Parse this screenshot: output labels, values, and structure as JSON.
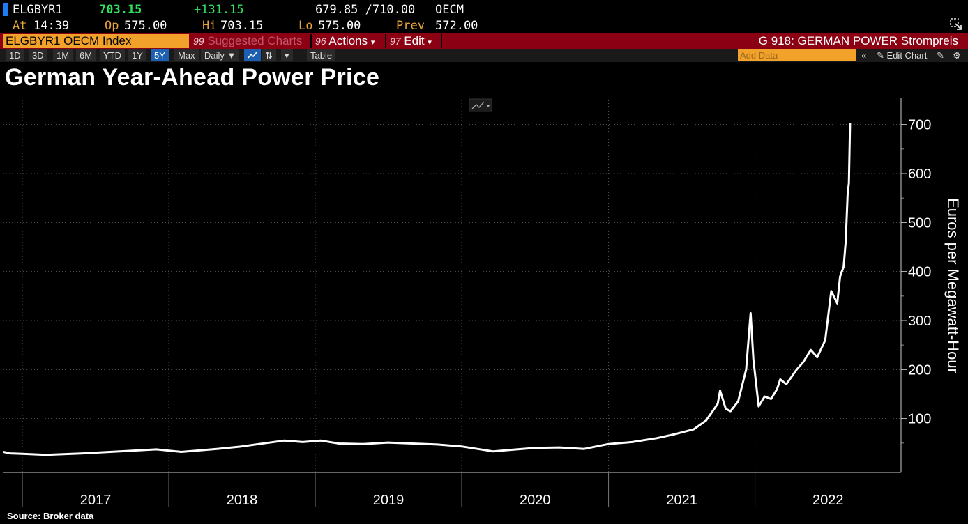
{
  "quote": {
    "ticker": "ELGBYR1",
    "last": "703.15",
    "change": "+131.15",
    "bid_ask": "679.85 /710.00",
    "source_code": "OECM",
    "at_label": "At",
    "at_value": "14:39",
    "op_label": "Op",
    "op_value": "575.00",
    "hi_label": "Hi",
    "hi_value": "703.15",
    "lo_label": "Lo",
    "lo_value": "575.00",
    "prev_label": "Prev",
    "prev_value": "572.00"
  },
  "function_bar": {
    "security": "ELGBYR1 OECM Index",
    "suggested_num": "99",
    "suggested": "Suggested Charts",
    "actions_num": "96",
    "actions": "Actions",
    "edit_num": "97",
    "edit": "Edit",
    "chart_name": "G 918: GERMAN POWER Strompreis"
  },
  "toolbar": {
    "ranges": [
      "1D",
      "3D",
      "1M",
      "6M",
      "YTD",
      "1Y",
      "5Y",
      "Max"
    ],
    "selected_range": "5Y",
    "frequency": "Daily",
    "table": "Table",
    "add_data_placeholder": "Add Data",
    "edit_chart": "Edit Chart",
    "icons": [
      "line-chart-icon",
      "candle-icon",
      "dropdown-icon",
      "collapse-icon",
      "pencil-icon",
      "edit-icon",
      "gear-icon",
      "resize-icon"
    ]
  },
  "colors": {
    "line": "#ffffff",
    "background": "#000000",
    "accent": "#f2a12b",
    "function_bar": "#8c0013",
    "up": "#2ee05c"
  },
  "chart_data": {
    "type": "line",
    "title": "German Year-Ahead Power Price",
    "xlabel": "",
    "ylabel": "Euros per Megawatt-Hour",
    "x_tick_labels": [
      "2017",
      "2018",
      "2019",
      "2020",
      "2021",
      "2022"
    ],
    "year_boundaries": [
      "2017-01-01",
      "2018-01-01",
      "2019-01-01",
      "2020-01-01",
      "2021-01-01",
      "2022-01-01"
    ],
    "yticks": [
      100,
      200,
      300,
      400,
      500,
      600,
      700
    ],
    "ylim": [
      -10,
      755
    ],
    "xlim": [
      "2016-11-15",
      "2022-12-31"
    ],
    "grid": true,
    "y_axis_side": "right",
    "series": [
      {
        "values": [
          [
            "2016-11-15",
            32
          ],
          [
            "2016-12-01",
            29
          ],
          [
            "2017-01-01",
            28
          ],
          [
            "2017-03-01",
            26
          ],
          [
            "2017-06-01",
            29
          ],
          [
            "2017-09-01",
            33
          ],
          [
            "2017-12-01",
            37
          ],
          [
            "2018-02-01",
            32
          ],
          [
            "2018-05-01",
            38
          ],
          [
            "2018-07-01",
            43
          ],
          [
            "2018-09-01",
            50
          ],
          [
            "2018-10-15",
            55
          ],
          [
            "2018-12-01",
            52
          ],
          [
            "2019-01-15",
            55
          ],
          [
            "2019-03-01",
            49
          ],
          [
            "2019-05-01",
            48
          ],
          [
            "2019-07-01",
            51
          ],
          [
            "2019-09-01",
            49
          ],
          [
            "2019-11-01",
            47
          ],
          [
            "2020-01-01",
            43
          ],
          [
            "2020-03-20",
            33
          ],
          [
            "2020-05-01",
            36
          ],
          [
            "2020-07-01",
            40
          ],
          [
            "2020-09-01",
            41
          ],
          [
            "2020-11-01",
            38
          ],
          [
            "2021-01-01",
            48
          ],
          [
            "2021-03-01",
            52
          ],
          [
            "2021-05-01",
            60
          ],
          [
            "2021-06-15",
            68
          ],
          [
            "2021-08-01",
            78
          ],
          [
            "2021-09-01",
            96
          ],
          [
            "2021-09-30",
            130
          ],
          [
            "2021-10-06",
            157
          ],
          [
            "2021-10-20",
            120
          ],
          [
            "2021-11-01",
            115
          ],
          [
            "2021-11-20",
            135
          ],
          [
            "2021-12-10",
            200
          ],
          [
            "2021-12-21",
            315
          ],
          [
            "2021-12-28",
            220
          ],
          [
            "2022-01-10",
            125
          ],
          [
            "2022-01-25",
            145
          ],
          [
            "2022-02-10",
            140
          ],
          [
            "2022-02-25",
            160
          ],
          [
            "2022-03-05",
            180
          ],
          [
            "2022-03-20",
            170
          ],
          [
            "2022-04-15",
            200
          ],
          [
            "2022-05-01",
            215
          ],
          [
            "2022-05-20",
            240
          ],
          [
            "2022-06-05",
            225
          ],
          [
            "2022-06-25",
            260
          ],
          [
            "2022-07-10",
            360
          ],
          [
            "2022-07-25",
            335
          ],
          [
            "2022-08-01",
            390
          ],
          [
            "2022-08-10",
            410
          ],
          [
            "2022-08-15",
            460
          ],
          [
            "2022-08-20",
            560
          ],
          [
            "2022-08-23",
            580
          ],
          [
            "2022-08-26",
            703
          ]
        ]
      }
    ]
  },
  "source": "Source: Broker data"
}
